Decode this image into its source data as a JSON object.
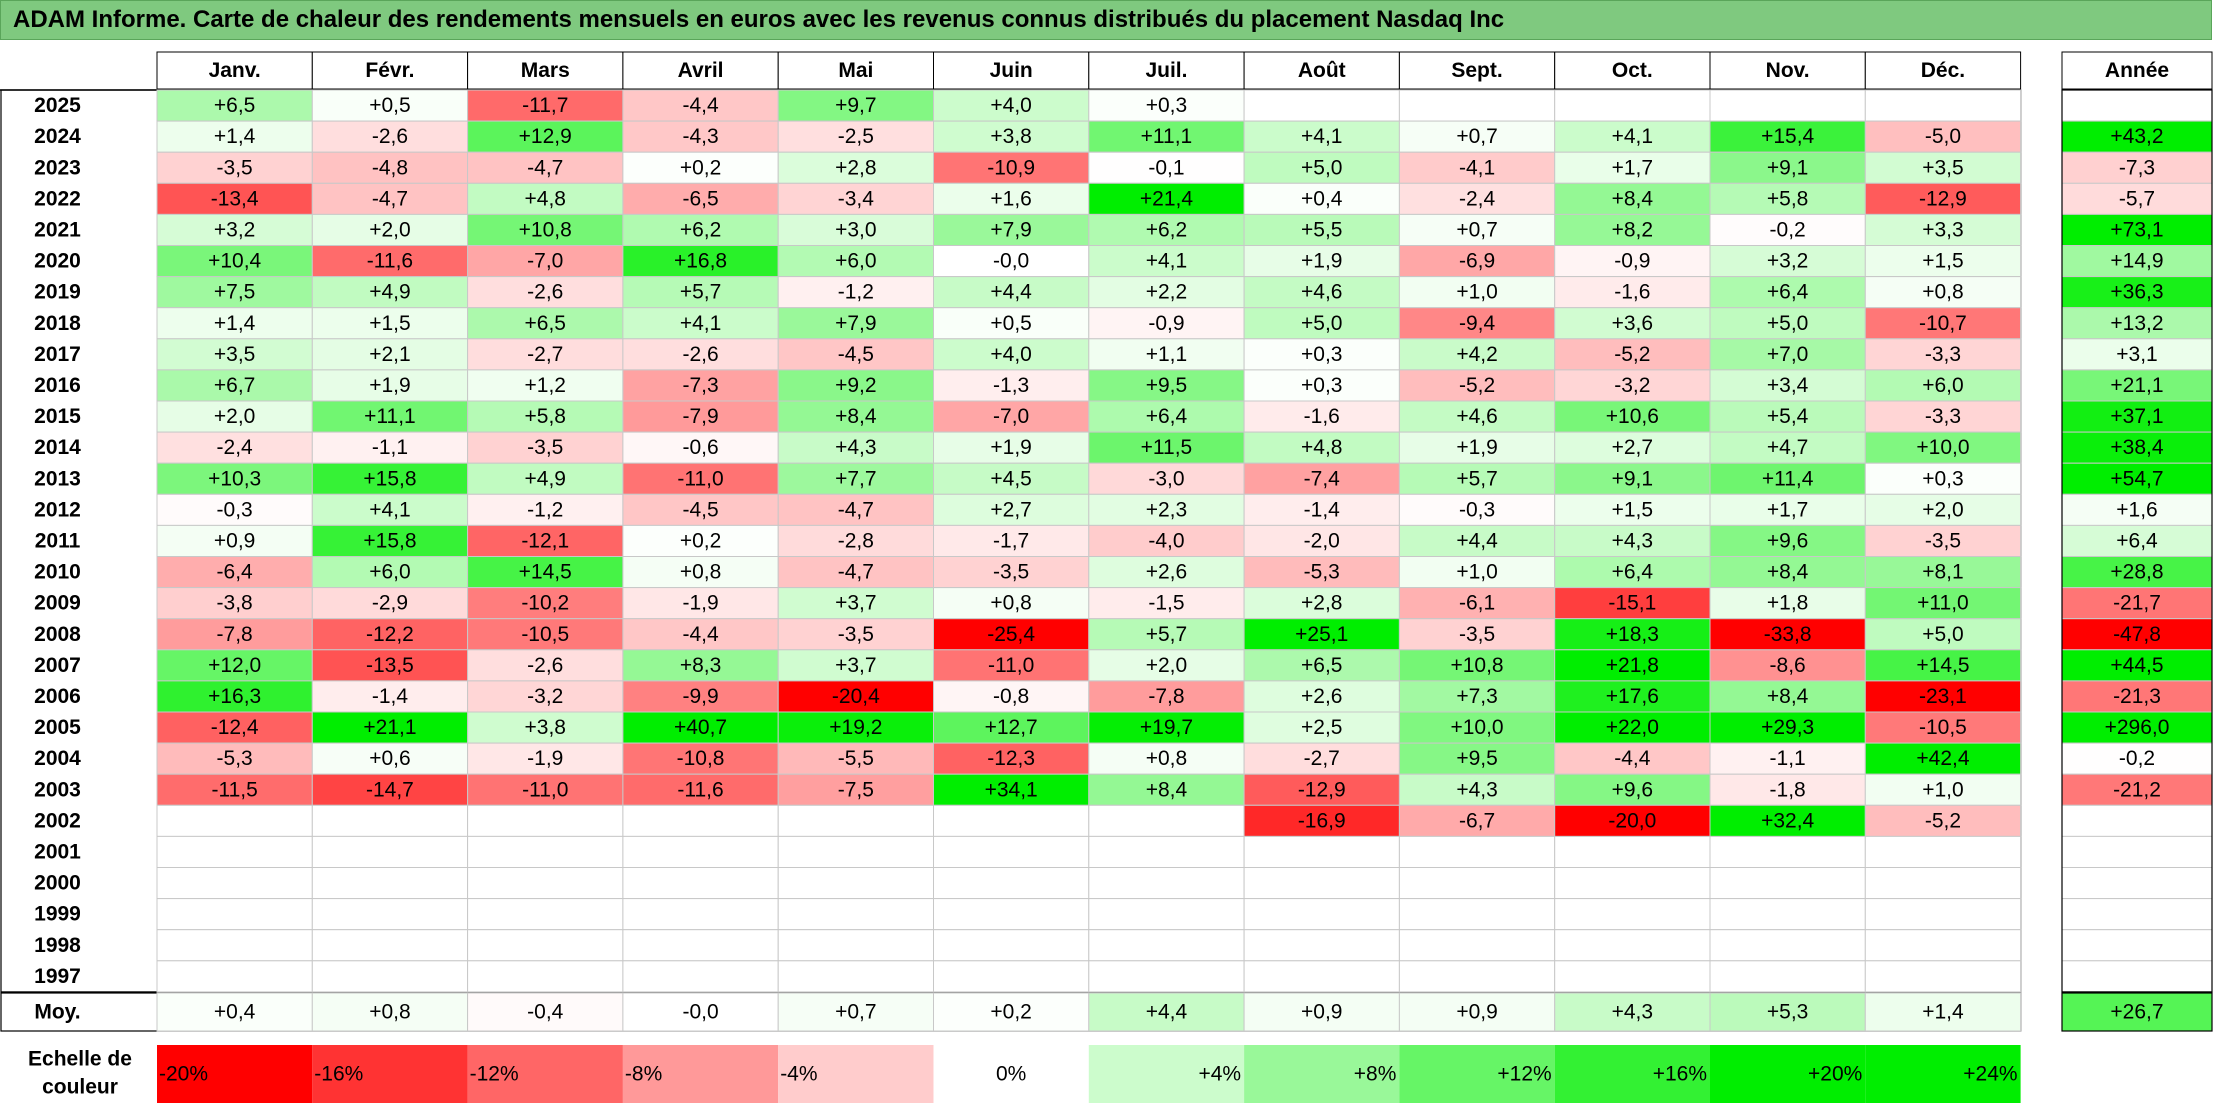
{
  "title": "ADAM Informe. Carte de chaleur des rendements mensuels en euros avec les revenus connus distribués du placement Nasdaq Inc",
  "colors": {
    "negative": "#ff0000",
    "zero": "#ffffff",
    "positive": "#00ee00",
    "title_bg": "#7fc97f"
  },
  "chart_data": {
    "type": "heatmap",
    "title": "ADAM Informe. Carte de chaleur des rendements mensuels en euros avec les revenus connus distribués du placement Nasdaq Inc",
    "months": [
      "Janv.",
      "Févr.",
      "Mars",
      "Avril",
      "Mai",
      "Juin",
      "Juil.",
      "Août",
      "Sept.",
      "Oct.",
      "Nov.",
      "Déc."
    ],
    "year_header": "Année",
    "rows": [
      {
        "year": "2025",
        "values": [
          "+6,5",
          "+0,5",
          "-11,7",
          "-4,4",
          "+9,7",
          "+4,0",
          "+0,3",
          "",
          "",
          "",
          "",
          ""
        ],
        "annual": ""
      },
      {
        "year": "2024",
        "values": [
          "+1,4",
          "-2,6",
          "+12,9",
          "-4,3",
          "-2,5",
          "+3,8",
          "+11,1",
          "+4,1",
          "+0,7",
          "+4,1",
          "+15,4",
          "-5,0"
        ],
        "annual": "+43,2"
      },
      {
        "year": "2023",
        "values": [
          "-3,5",
          "-4,8",
          "-4,7",
          "+0,2",
          "+2,8",
          "-10,9",
          "-0,1",
          "+5,0",
          "-4,1",
          "+1,7",
          "+9,1",
          "+3,5"
        ],
        "annual": "-7,3"
      },
      {
        "year": "2022",
        "values": [
          "-13,4",
          "-4,7",
          "+4,8",
          "-6,5",
          "-3,4",
          "+1,6",
          "+21,4",
          "+0,4",
          "-2,4",
          "+8,4",
          "+5,8",
          "-12,9"
        ],
        "annual": "-5,7"
      },
      {
        "year": "2021",
        "values": [
          "+3,2",
          "+2,0",
          "+10,8",
          "+6,2",
          "+3,0",
          "+7,9",
          "+6,2",
          "+5,5",
          "+0,7",
          "+8,2",
          "-0,2",
          "+3,3"
        ],
        "annual": "+73,1"
      },
      {
        "year": "2020",
        "values": [
          "+10,4",
          "-11,6",
          "-7,0",
          "+16,8",
          "+6,0",
          "-0,0",
          "+4,1",
          "+1,9",
          "-6,9",
          "-0,9",
          "+3,2",
          "+1,5"
        ],
        "annual": "+14,9"
      },
      {
        "year": "2019",
        "values": [
          "+7,5",
          "+4,9",
          "-2,6",
          "+5,7",
          "-1,2",
          "+4,4",
          "+2,2",
          "+4,6",
          "+1,0",
          "-1,6",
          "+6,4",
          "+0,8"
        ],
        "annual": "+36,3"
      },
      {
        "year": "2018",
        "values": [
          "+1,4",
          "+1,5",
          "+6,5",
          "+4,1",
          "+7,9",
          "+0,5",
          "-0,9",
          "+5,0",
          "-9,4",
          "+3,6",
          "+5,0",
          "-10,7"
        ],
        "annual": "+13,2"
      },
      {
        "year": "2017",
        "values": [
          "+3,5",
          "+2,1",
          "-2,7",
          "-2,6",
          "-4,5",
          "+4,0",
          "+1,1",
          "+0,3",
          "+4,2",
          "-5,2",
          "+7,0",
          "-3,3"
        ],
        "annual": "+3,1"
      },
      {
        "year": "2016",
        "values": [
          "+6,7",
          "+1,9",
          "+1,2",
          "-7,3",
          "+9,2",
          "-1,3",
          "+9,5",
          "+0,3",
          "-5,2",
          "-3,2",
          "+3,4",
          "+6,0"
        ],
        "annual": "+21,1"
      },
      {
        "year": "2015",
        "values": [
          "+2,0",
          "+11,1",
          "+5,8",
          "-7,9",
          "+8,4",
          "-7,0",
          "+6,4",
          "-1,6",
          "+4,6",
          "+10,6",
          "+5,4",
          "-3,3"
        ],
        "annual": "+37,1"
      },
      {
        "year": "2014",
        "values": [
          "-2,4",
          "-1,1",
          "-3,5",
          "-0,6",
          "+4,3",
          "+1,9",
          "+11,5",
          "+4,8",
          "+1,9",
          "+2,7",
          "+4,7",
          "+10,0"
        ],
        "annual": "+38,4"
      },
      {
        "year": "2013",
        "values": [
          "+10,3",
          "+15,8",
          "+4,9",
          "-11,0",
          "+7,7",
          "+4,5",
          "-3,0",
          "-7,4",
          "+5,7",
          "+9,1",
          "+11,4",
          "+0,3"
        ],
        "annual": "+54,7"
      },
      {
        "year": "2012",
        "values": [
          "-0,3",
          "+4,1",
          "-1,2",
          "-4,5",
          "-4,7",
          "+2,7",
          "+2,3",
          "-1,4",
          "-0,3",
          "+1,5",
          "+1,7",
          "+2,0"
        ],
        "annual": "+1,6"
      },
      {
        "year": "2011",
        "values": [
          "+0,9",
          "+15,8",
          "-12,1",
          "+0,2",
          "-2,8",
          "-1,7",
          "-4,0",
          "-2,0",
          "+4,4",
          "+4,3",
          "+9,6",
          "-3,5"
        ],
        "annual": "+6,4"
      },
      {
        "year": "2010",
        "values": [
          "-6,4",
          "+6,0",
          "+14,5",
          "+0,8",
          "-4,7",
          "-3,5",
          "+2,6",
          "-5,3",
          "+1,0",
          "+6,4",
          "+8,4",
          "+8,1"
        ],
        "annual": "+28,8"
      },
      {
        "year": "2009",
        "values": [
          "-3,8",
          "-2,9",
          "-10,2",
          "-1,9",
          "+3,7",
          "+0,8",
          "-1,5",
          "+2,8",
          "-6,1",
          "-15,1",
          "+1,8",
          "+11,0"
        ],
        "annual": "-21,7"
      },
      {
        "year": "2008",
        "values": [
          "-7,8",
          "-12,2",
          "-10,5",
          "-4,4",
          "-3,5",
          "-25,4",
          "+5,7",
          "+25,1",
          "-3,5",
          "+18,3",
          "-33,8",
          "+5,0"
        ],
        "annual": "-47,8"
      },
      {
        "year": "2007",
        "values": [
          "+12,0",
          "-13,5",
          "-2,6",
          "+8,3",
          "+3,7",
          "-11,0",
          "+2,0",
          "+6,5",
          "+10,8",
          "+21,8",
          "-8,6",
          "+14,5"
        ],
        "annual": "+44,5"
      },
      {
        "year": "2006",
        "values": [
          "+16,3",
          "-1,4",
          "-3,2",
          "-9,9",
          "-20,4",
          "-0,8",
          "-7,8",
          "+2,6",
          "+7,3",
          "+17,6",
          "+8,4",
          "-23,1"
        ],
        "annual": "-21,3"
      },
      {
        "year": "2005",
        "values": [
          "-12,4",
          "+21,1",
          "+3,8",
          "+40,7",
          "+19,2",
          "+12,7",
          "+19,7",
          "+2,5",
          "+10,0",
          "+22,0",
          "+29,3",
          "-10,5"
        ],
        "annual": "+296,0"
      },
      {
        "year": "2004",
        "values": [
          "-5,3",
          "+0,6",
          "-1,9",
          "-10,8",
          "-5,5",
          "-12,3",
          "+0,8",
          "-2,7",
          "+9,5",
          "-4,4",
          "-1,1",
          "+42,4"
        ],
        "annual": "-0,2"
      },
      {
        "year": "2003",
        "values": [
          "-11,5",
          "-14,7",
          "-11,0",
          "-11,6",
          "-7,5",
          "+34,1",
          "+8,4",
          "-12,9",
          "+4,3",
          "+9,6",
          "-1,8",
          "+1,0"
        ],
        "annual": "-21,2"
      },
      {
        "year": "2002",
        "values": [
          "",
          "",
          "",
          "",
          "",
          "",
          "",
          "-16,9",
          "-6,7",
          "-20,0",
          "+32,4",
          "-5,2"
        ],
        "annual": ""
      },
      {
        "year": "2001",
        "values": [
          "",
          "",
          "",
          "",
          "",
          "",
          "",
          "",
          "",
          "",
          "",
          ""
        ],
        "annual": ""
      },
      {
        "year": "2000",
        "values": [
          "",
          "",
          "",
          "",
          "",
          "",
          "",
          "",
          "",
          "",
          "",
          ""
        ],
        "annual": ""
      },
      {
        "year": "1999",
        "values": [
          "",
          "",
          "",
          "",
          "",
          "",
          "",
          "",
          "",
          "",
          "",
          ""
        ],
        "annual": ""
      },
      {
        "year": "1998",
        "values": [
          "",
          "",
          "",
          "",
          "",
          "",
          "",
          "",
          "",
          "",
          "",
          ""
        ],
        "annual": ""
      },
      {
        "year": "1997",
        "values": [
          "",
          "",
          "",
          "",
          "",
          "",
          "",
          "",
          "",
          "",
          "",
          ""
        ],
        "annual": ""
      }
    ],
    "average": {
      "label": "Moy.",
      "values": [
        "+0,4",
        "+0,8",
        "-0,4",
        "-0,0",
        "+0,7",
        "+0,2",
        "+4,4",
        "+0,9",
        "+0,9",
        "+4,3",
        "+5,3",
        "+1,4"
      ],
      "annual": "+26,7"
    },
    "scale": {
      "label": "Echelle de couleur",
      "steps": [
        "-20%",
        "-16%",
        "-12%",
        "-8%",
        "-4%",
        "0%",
        "+4%",
        "+8%",
        "+12%",
        "+16%",
        "+20%",
        "+24%"
      ],
      "values": [
        -20,
        -16,
        -12,
        -8,
        -4,
        0,
        4,
        8,
        12,
        16,
        20,
        24
      ]
    }
  }
}
